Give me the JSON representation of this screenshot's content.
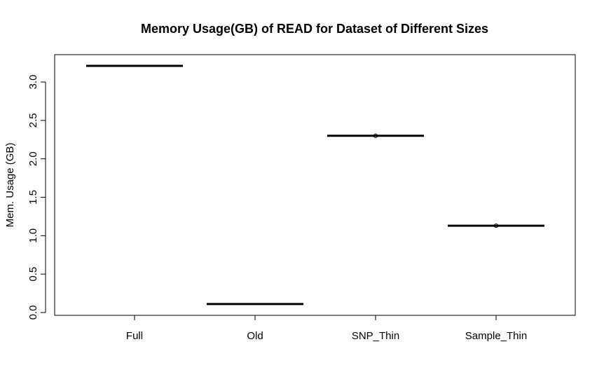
{
  "chart_data": {
    "type": "box",
    "title": "Memory Usage(GB) of READ for Dataset of Different Sizes",
    "xlabel": "",
    "ylabel": "Mem. Usage (GB)",
    "categories": [
      "Full",
      "Old",
      "SNP_Thin",
      "Sample_Thin"
    ],
    "medians": [
      3.21,
      0.11,
      2.3,
      1.13
    ],
    "outliers": [
      [],
      [],
      [
        2.3
      ],
      [
        1.13
      ]
    ],
    "ylim": [
      0,
      3.3
    ],
    "yticks": [
      {
        "value": 0.0,
        "label": "0.0"
      },
      {
        "value": 0.5,
        "label": "0.5"
      },
      {
        "value": 1.0,
        "label": "1.0"
      },
      {
        "value": 1.5,
        "label": "1.5"
      },
      {
        "value": 2.0,
        "label": "2.0"
      },
      {
        "value": 2.5,
        "label": "2.5"
      },
      {
        "value": 3.0,
        "label": "3.0"
      }
    ],
    "grid": false,
    "colors": {
      "line": "#000000",
      "background": "#ffffff"
    }
  }
}
